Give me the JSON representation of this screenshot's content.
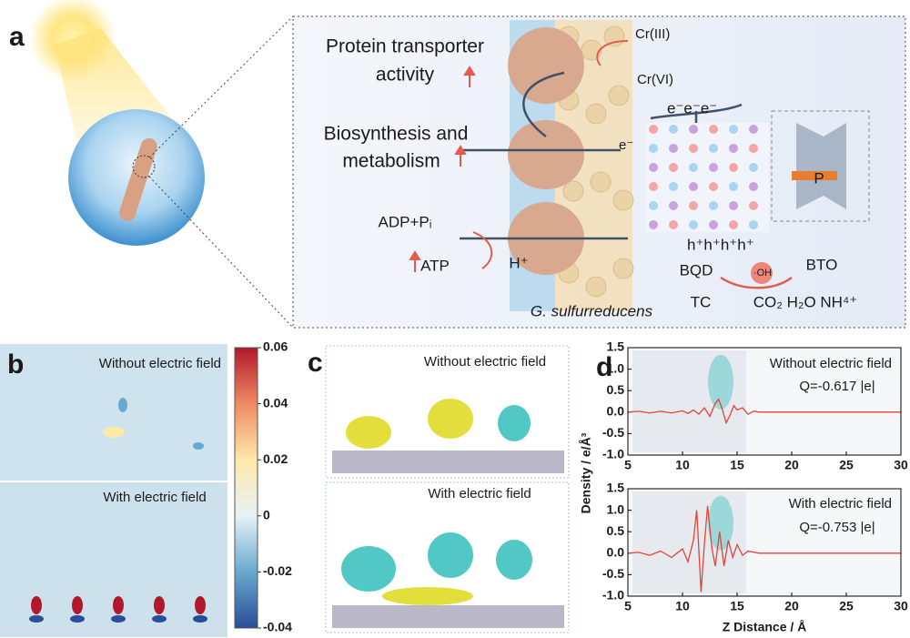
{
  "panel_a": {
    "label": "a",
    "protein_line1": "Protein transporter",
    "protein_line2": "activity",
    "biosynthesis_line1": "Biosynthesis and",
    "biosynthesis_line2": "metabolism",
    "adp": "ADP+Pᵢ",
    "atp": "ATP",
    "proton": "H⁺",
    "cr3": "Cr(III)",
    "cr6": "Cr(VI)",
    "electron": "e⁻",
    "electrons": "e⁻e⁻e⁻",
    "holes": "h⁺h⁺h⁺h⁺",
    "polarization": "P",
    "bqd": "BQD",
    "bto": "BTO",
    "radical": "·OH",
    "tc": "TC",
    "products": "CO₂ H₂O NH⁴⁺",
    "organism": "G. sulfurreducens"
  },
  "panel_b": {
    "label": "b",
    "top_title": "Without electric field",
    "bottom_title": "With electric field",
    "colorbar_lim": [
      -0.04,
      0.06
    ],
    "colorbar_ticks": [
      0.06,
      0.04,
      0.02,
      0,
      -0.02,
      -0.04
    ]
  },
  "panel_c": {
    "label": "c",
    "top_title": "Without electric field",
    "bottom_title": "With electric field"
  },
  "panel_d": {
    "label": "d",
    "ylabel": "Density / e/Å³",
    "xlabel": "Z Distance / Å"
  },
  "chart_data": [
    {
      "type": "line",
      "annotations": [
        "Without electric field",
        "Q=-0.617 |e|"
      ],
      "color": "#e0453a",
      "x": [
        5,
        6,
        7,
        8,
        9,
        10,
        10.5,
        11,
        11.5,
        12,
        12.5,
        13,
        13.3,
        13.6,
        14,
        14.3,
        14.7,
        15,
        15.5,
        16,
        16.5,
        17,
        18,
        20,
        25,
        30
      ],
      "values": [
        0,
        0.02,
        -0.02,
        0.02,
        -0.02,
        0.03,
        -0.03,
        0.05,
        -0.05,
        0.1,
        -0.1,
        0.2,
        0.3,
        0.1,
        -0.25,
        -0.1,
        0.15,
        0.05,
        0.1,
        -0.05,
        0.02,
        0,
        0,
        0,
        0,
        0
      ],
      "xlim": [
        5,
        30
      ],
      "ylim": [
        -1,
        1.5
      ],
      "xticks": [
        5,
        10,
        15,
        20,
        25,
        30
      ],
      "yticks": [
        1.5,
        {
          "value": 1,
          "label": "1.0"
        },
        0.5,
        {
          "value": 0,
          "label": "0.0"
        },
        -0.5,
        {
          "value": -1,
          "label": "-1.0"
        }
      ]
    },
    {
      "type": "line",
      "annotations": [
        "With electric field",
        "Q=-0.753 |e|"
      ],
      "color": "#e0453a",
      "x": [
        5,
        6,
        7,
        8,
        9,
        10,
        10.5,
        11,
        11.3,
        11.7,
        12,
        12.3,
        12.7,
        13,
        13.4,
        13.8,
        14.2,
        14.6,
        15,
        15.5,
        16,
        17,
        20,
        25,
        30
      ],
      "values": [
        0,
        0.02,
        -0.05,
        0.05,
        -0.1,
        0.1,
        -0.2,
        0.3,
        1.0,
        -0.9,
        0.2,
        1.1,
        0.1,
        -0.3,
        0.5,
        -0.3,
        0.3,
        -0.1,
        0.2,
        -0.05,
        0.05,
        0,
        0,
        0,
        0
      ],
      "xlim": [
        5,
        30
      ],
      "ylim": [
        -1,
        1.5
      ],
      "xticks": [
        5,
        10,
        15,
        20,
        25,
        30
      ],
      "yticks": [
        1.5,
        {
          "value": 1,
          "label": "1.0"
        },
        0.5,
        {
          "value": 0,
          "label": "0.0"
        },
        -0.5,
        {
          "value": -1,
          "label": "-1.0"
        }
      ]
    }
  ]
}
